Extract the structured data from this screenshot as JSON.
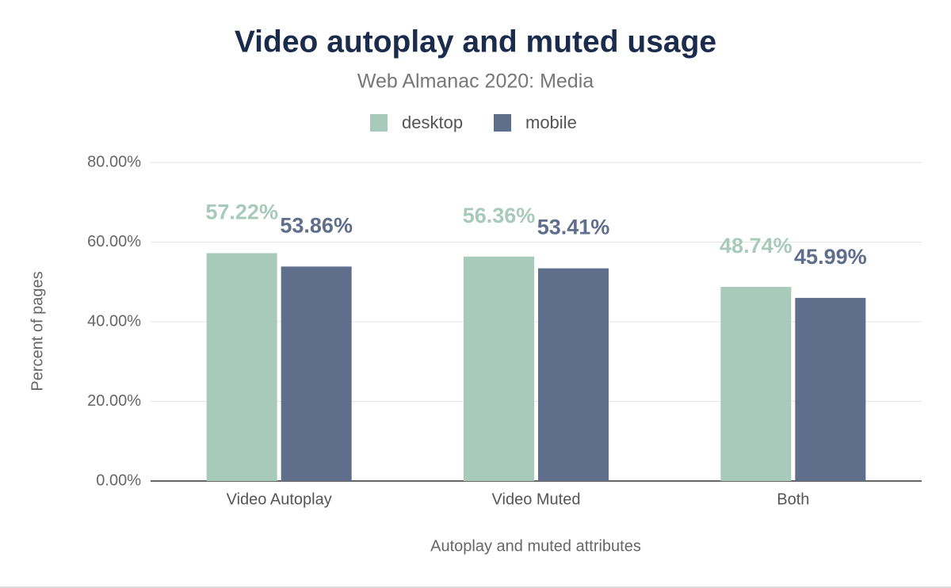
{
  "chart_data": {
    "type": "bar",
    "title": "Video autoplay and muted usage",
    "subtitle": "Web Almanac 2020: Media",
    "x_label": "Autoplay and muted attributes",
    "y_label": "Percent of pages",
    "categories": [
      "Video Autoplay",
      "Video Muted",
      "Both"
    ],
    "series": [
      {
        "name": "desktop",
        "color": "#a8cabb",
        "values": [
          57.22,
          56.36,
          48.74
        ],
        "value_labels": [
          "57.22%",
          "56.36%",
          "48.74%"
        ]
      },
      {
        "name": "mobile",
        "color": "#5f6e8b",
        "values": [
          53.86,
          53.41,
          45.99
        ],
        "value_labels": [
          "53.86%",
          "53.41%",
          "45.99%"
        ]
      }
    ],
    "ylim": [
      0,
      80
    ],
    "yticks": [
      {
        "value": 0,
        "label": "0.00%"
      },
      {
        "value": 20,
        "label": "20.00%"
      },
      {
        "value": 40,
        "label": "40.00%"
      },
      {
        "value": 60,
        "label": "60.00%"
      },
      {
        "value": 80,
        "label": "80.00%"
      }
    ],
    "grid": true,
    "legend": "top"
  }
}
